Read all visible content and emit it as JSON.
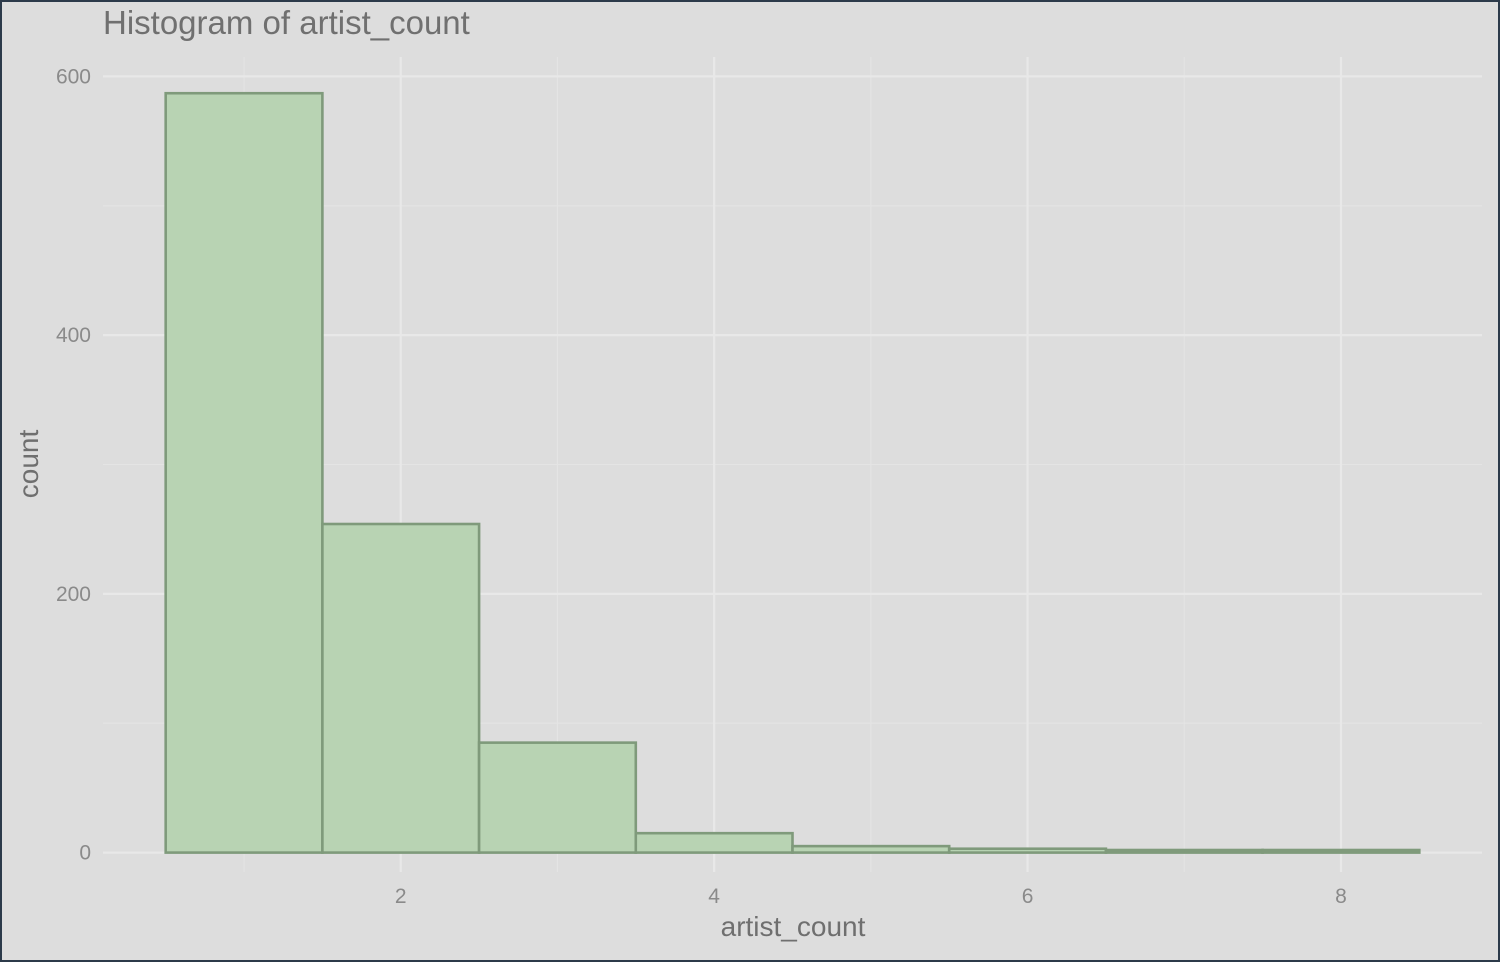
{
  "chart_data": {
    "type": "bar",
    "title": "Histogram of artist_count",
    "xlabel": "artist_count",
    "ylabel": "count",
    "bins": [
      {
        "from": 0.5,
        "to": 1.5,
        "count": 587
      },
      {
        "from": 1.5,
        "to": 2.5,
        "count": 254
      },
      {
        "from": 2.5,
        "to": 3.5,
        "count": 85
      },
      {
        "from": 3.5,
        "to": 4.5,
        "count": 15
      },
      {
        "from": 4.5,
        "to": 5.5,
        "count": 5
      },
      {
        "from": 5.5,
        "to": 6.5,
        "count": 3
      },
      {
        "from": 6.5,
        "to": 7.5,
        "count": 2
      },
      {
        "from": 7.5,
        "to": 8.5,
        "count": 2
      }
    ],
    "xlim": [
      0.1,
      8.9
    ],
    "ylim": [
      -15,
      615
    ],
    "xticks": [
      2,
      4,
      6,
      8
    ],
    "xtick_labels": [
      "2",
      "4",
      "6",
      "8"
    ],
    "yticks": [
      0,
      200,
      400,
      600
    ],
    "ytick_labels": [
      "0",
      "200",
      "400",
      "600"
    ],
    "grid": true,
    "legend": "none",
    "colors": {
      "background": "#dddddd",
      "bar_fill": "#b8d3b3",
      "bar_stroke": "#7f9a7b",
      "gridline": "#e8e8e8"
    }
  }
}
